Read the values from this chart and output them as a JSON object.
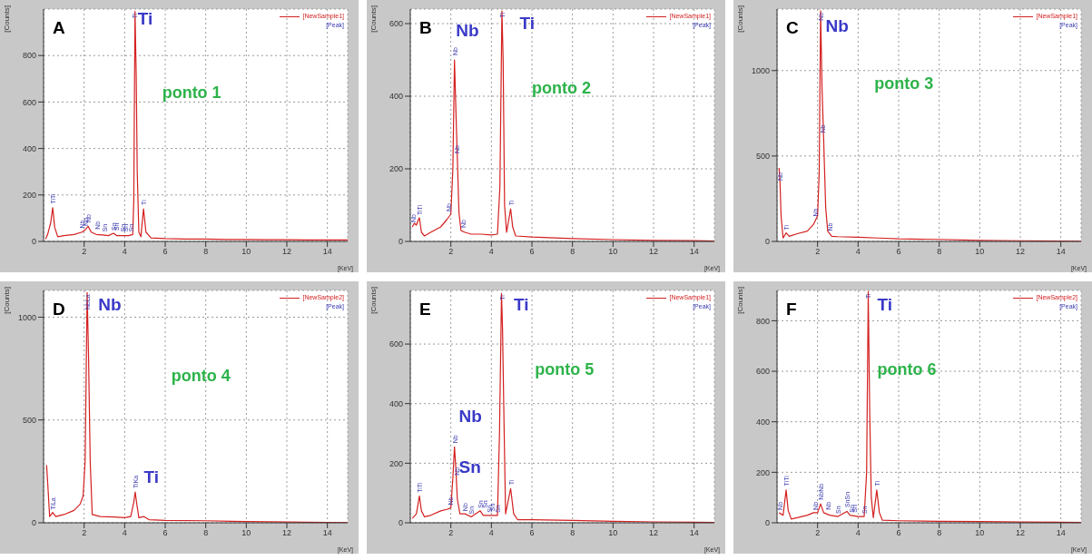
{
  "chart_data": [
    {
      "type": "line",
      "xlabel": "[KeV]",
      "ylabel": "[Counts]",
      "xlim": [
        0,
        15
      ],
      "xticks": [
        2,
        4,
        6,
        8,
        10,
        12,
        14
      ],
      "ylim": [
        0,
        1000
      ],
      "yticks": [
        0,
        200,
        400,
        600,
        800
      ],
      "grid": true,
      "legend": "top right",
      "marker": "none",
      "line_style": "solid",
      "x": [
        0.1,
        0.2,
        0.35,
        0.45,
        0.55,
        0.7,
        1.0,
        1.5,
        1.9,
        2.05,
        2.2,
        2.35,
        2.6,
        2.9,
        3.2,
        3.45,
        3.6,
        3.9,
        4.2,
        4.4,
        4.45,
        4.51,
        4.57,
        4.62,
        4.7,
        4.8,
        4.93,
        5.05,
        5.3,
        6,
        7,
        8,
        9,
        10,
        11,
        12,
        13,
        14,
        15
      ],
      "series": [
        {
          "name": "[NewSample1]",
          "color": "#d42020",
          "values": [
            10,
            30,
            80,
            145,
            60,
            20,
            25,
            30,
            40,
            50,
            65,
            40,
            30,
            28,
            25,
            35,
            25,
            25,
            25,
            30,
            180,
            990,
            720,
            300,
            40,
            20,
            140,
            40,
            15,
            12,
            10,
            10,
            8,
            8,
            7,
            7,
            6,
            6,
            6
          ]
        }
      ],
      "annotations": [
        "A",
        "ponto 1",
        "[Peak]",
        "Ti",
        {
          "text": "TiTi",
          "x": 0.45,
          "y": 150
        },
        {
          "text": "Nb",
          "x": 1.9,
          "y": 45
        },
        {
          "text": "Nb",
          "x": 2.05,
          "y": 55
        },
        {
          "text": "Nb",
          "x": 2.2,
          "y": 70
        },
        {
          "text": "Nb",
          "x": 2.65,
          "y": 40
        },
        {
          "text": "Sn",
          "x": 3.0,
          "y": 30
        },
        {
          "text": "Sn",
          "x": 3.45,
          "y": 35
        },
        {
          "text": "Sn",
          "x": 3.6,
          "y": 35
        },
        {
          "text": "Sn",
          "x": 3.9,
          "y": 30
        },
        {
          "text": "Sn",
          "x": 4.05,
          "y": 30
        },
        {
          "text": "Sn",
          "x": 4.3,
          "y": 30
        },
        {
          "text": "Ti",
          "x": 4.5,
          "y": 990
        },
        {
          "text": "Ti",
          "x": 4.93,
          "y": 145
        }
      ]
    },
    {
      "type": "line",
      "xlabel": "[KeV]",
      "ylabel": "[Counts]",
      "xlim": [
        0,
        15
      ],
      "xticks": [
        2,
        4,
        6,
        8,
        10,
        12,
        14
      ],
      "ylim": [
        0,
        640
      ],
      "yticks": [
        0,
        200,
        400,
        600
      ],
      "grid": true,
      "legend": "top right",
      "marker": "none",
      "line_style": "solid",
      "x": [
        0.1,
        0.2,
        0.3,
        0.4,
        0.45,
        0.55,
        0.7,
        1,
        1.5,
        1.8,
        2.0,
        2.1,
        2.18,
        2.25,
        2.32,
        2.4,
        2.5,
        2.7,
        3,
        3.5,
        4,
        4.3,
        4.42,
        4.52,
        4.58,
        4.65,
        4.75,
        4.95,
        5.05,
        5.2,
        6,
        8,
        10,
        12,
        14,
        15
      ],
      "series": [
        {
          "name": "[NewSample1]",
          "color": "#d42020",
          "values": [
            40,
            50,
            45,
            60,
            65,
            25,
            15,
            25,
            40,
            60,
            75,
            200,
            500,
            360,
            230,
            80,
            30,
            25,
            20,
            20,
            18,
            20,
            150,
            635,
            500,
            100,
            25,
            90,
            40,
            15,
            12,
            8,
            5,
            3,
            2,
            1
          ]
        }
      ],
      "annotations": [
        "B",
        "ponto 2",
        "[Peak]",
        "Nb",
        "Ti",
        {
          "text": "Nb",
          "x": 0.15,
          "y": 45
        },
        {
          "text": "TiTi",
          "x": 0.45,
          "y": 65
        },
        {
          "text": "Nb",
          "x": 1.9,
          "y": 75
        },
        {
          "text": "Nb",
          "x": 2.18,
          "y": 505
        },
        {
          "text": "Nb",
          "x": 2.3,
          "y": 235
        },
        {
          "text": "Nb",
          "x": 2.6,
          "y": 30
        },
        {
          "text": "Ti",
          "x": 4.52,
          "y": 635
        },
        {
          "text": "Ti",
          "x": 4.95,
          "y": 92
        }
      ]
    },
    {
      "type": "line",
      "xlabel": "[KeV]",
      "ylabel": "[Counts]",
      "xlim": [
        0,
        15
      ],
      "xticks": [
        2,
        4,
        6,
        8,
        10,
        12,
        14
      ],
      "ylim": [
        0,
        1360
      ],
      "yticks": [
        0,
        500,
        1000
      ],
      "grid": true,
      "legend": "top right",
      "marker": "none",
      "line_style": "solid",
      "x": [
        0.1,
        0.15,
        0.2,
        0.3,
        0.45,
        0.6,
        1,
        1.5,
        1.8,
        2.0,
        2.08,
        2.15,
        2.22,
        2.3,
        2.4,
        2.5,
        2.7,
        3,
        4,
        5,
        6,
        8,
        10,
        12,
        14,
        15
      ],
      "series": [
        {
          "name": "[NewSample1]",
          "color": "#d42020",
          "values": [
            430,
            340,
            150,
            20,
            50,
            30,
            45,
            60,
            100,
            150,
            400,
            1350,
            900,
            600,
            200,
            60,
            30,
            28,
            25,
            20,
            15,
            12,
            6,
            4,
            2,
            1
          ]
        }
      ],
      "annotations": [
        "C",
        "ponto 3",
        "[Peak]",
        "Nb",
        {
          "text": "Nb",
          "x": 0.15,
          "y": 340
        },
        {
          "text": "Ti",
          "x": 0.45,
          "y": 50
        },
        {
          "text": "Nb",
          "x": 1.9,
          "y": 130
        },
        {
          "text": "Nb",
          "x": 2.15,
          "y": 1350
        },
        {
          "text": "Nb",
          "x": 2.25,
          "y": 620
        },
        {
          "text": "Nb",
          "x": 2.6,
          "y": 45
        }
      ]
    },
    {
      "type": "line",
      "xlabel": "[KeV]",
      "ylabel": "[Counts]",
      "xlim": [
        0,
        15
      ],
      "xticks": [
        2,
        4,
        6,
        8,
        10,
        12,
        14
      ],
      "ylim": [
        0,
        1130
      ],
      "yticks": [
        0,
        500,
        1000
      ],
      "grid": true,
      "legend": "top right",
      "marker": "none",
      "line_style": "solid",
      "x": [
        0.15,
        0.2,
        0.3,
        0.45,
        0.6,
        1,
        1.5,
        1.8,
        1.95,
        2.05,
        2.15,
        2.22,
        2.3,
        2.4,
        2.8,
        3.5,
        4,
        4.3,
        4.45,
        4.52,
        4.6,
        4.7,
        4.95,
        5.2,
        6,
        8,
        10,
        12,
        14,
        15
      ],
      "series": [
        {
          "name": "[NewSample2]",
          "color": "#d42020",
          "values": [
            280,
            200,
            30,
            50,
            30,
            40,
            60,
            90,
            130,
            300,
            1120,
            800,
            300,
            40,
            30,
            28,
            25,
            30,
            100,
            150,
            90,
            25,
            30,
            15,
            12,
            10,
            6,
            4,
            2,
            1
          ]
        }
      ],
      "annotations": [
        "D",
        "ponto 4",
        "[Peak]",
        "Nb",
        "Ti",
        {
          "text": "TiLa",
          "x": 0.45,
          "y": 50
        },
        {
          "text": "NbLa",
          "x": 2.15,
          "y": 1120
        },
        {
          "text": "TiKa",
          "x": 4.52,
          "y": 155
        }
      ]
    },
    {
      "type": "line",
      "xlabel": "[KeV]",
      "ylabel": "[Counts]",
      "xlim": [
        0,
        15
      ],
      "xticks": [
        2,
        4,
        6,
        8,
        10,
        12,
        14
      ],
      "ylim": [
        0,
        780
      ],
      "yticks": [
        0,
        200,
        400,
        600
      ],
      "grid": true,
      "legend": "top right",
      "marker": "none",
      "line_style": "solid",
      "x": [
        0.1,
        0.3,
        0.45,
        0.55,
        0.7,
        1,
        1.5,
        1.8,
        2.0,
        2.1,
        2.18,
        2.25,
        2.32,
        2.45,
        2.7,
        3,
        3.45,
        3.6,
        4,
        4.3,
        4.4,
        4.5,
        4.55,
        4.62,
        4.7,
        4.95,
        5.1,
        5.3,
        6,
        8,
        10,
        12,
        14,
        15
      ],
      "series": [
        {
          "name": "[NewSample1]",
          "color": "#d42020",
          "values": [
            15,
            30,
            90,
            40,
            20,
            25,
            40,
            45,
            50,
            150,
            255,
            180,
            80,
            30,
            30,
            20,
            40,
            25,
            25,
            25,
            300,
            770,
            650,
            350,
            30,
            115,
            30,
            10,
            10,
            8,
            5,
            3,
            2,
            1
          ]
        }
      ],
      "annotations": [
        "E",
        "ponto 5",
        "[Peak]",
        "Ti",
        "Nb",
        "Sn",
        {
          "text": "TiTi",
          "x": 0.45,
          "y": 92
        },
        {
          "text": "Nb",
          "x": 1.95,
          "y": 50
        },
        {
          "text": "Nb",
          "x": 2.18,
          "y": 258
        },
        {
          "text": "Nb",
          "x": 2.28,
          "y": 150
        },
        {
          "text": "Nb",
          "x": 2.7,
          "y": 30
        },
        {
          "text": "Sn",
          "x": 3.0,
          "y": 20
        },
        {
          "text": "Sn",
          "x": 3.45,
          "y": 40
        },
        {
          "text": "Sn",
          "x": 3.65,
          "y": 40
        },
        {
          "text": "Sn",
          "x": 3.9,
          "y": 25
        },
        {
          "text": "Sn",
          "x": 4.05,
          "y": 30
        },
        {
          "text": "Sn",
          "x": 4.3,
          "y": 25
        },
        {
          "text": "Ti",
          "x": 4.52,
          "y": 770
        },
        {
          "text": "Ti",
          "x": 4.95,
          "y": 118
        }
      ]
    },
    {
      "type": "line",
      "xlabel": "[KeV]",
      "ylabel": "[Counts]",
      "xlim": [
        0,
        15
      ],
      "xticks": [
        2,
        4,
        6,
        8,
        10,
        12,
        14
      ],
      "ylim": [
        0,
        920
      ],
      "yticks": [
        0,
        200,
        400,
        600,
        800
      ],
      "grid": true,
      "legend": "top right",
      "marker": "none",
      "line_style": "solid",
      "x": [
        0.1,
        0.3,
        0.45,
        0.55,
        0.7,
        1,
        1.5,
        1.8,
        2.0,
        2.15,
        2.3,
        2.6,
        3,
        3.45,
        3.6,
        4,
        4.3,
        4.42,
        4.5,
        4.57,
        4.65,
        4.75,
        4.92,
        5.05,
        5.2,
        6,
        8,
        10,
        12,
        14,
        15
      ],
      "series": [
        {
          "name": "[NewSample2]",
          "color": "#d42020",
          "values": [
            40,
            30,
            130,
            50,
            15,
            20,
            30,
            40,
            40,
            75,
            40,
            30,
            25,
            45,
            30,
            25,
            25,
            200,
            915,
            450,
            100,
            20,
            130,
            40,
            10,
            8,
            6,
            5,
            3,
            2,
            1
          ]
        }
      ],
      "annotations": [
        "F",
        "ponto 6",
        "[Peak]",
        "Ti",
        {
          "text": "Nb",
          "x": 0.12,
          "y": 40
        },
        {
          "text": "TiTi",
          "x": 0.45,
          "y": 135
        },
        {
          "text": "Nb",
          "x": 1.9,
          "y": 40
        },
        {
          "text": "NbNb",
          "x": 2.15,
          "y": 80
        },
        {
          "text": "Nb",
          "x": 2.5,
          "y": 40
        },
        {
          "text": "Sn",
          "x": 3.0,
          "y": 25
        },
        {
          "text": "SnSn",
          "x": 3.45,
          "y": 50
        },
        {
          "text": "Sn",
          "x": 3.65,
          "y": 30
        },
        {
          "text": "Sn",
          "x": 3.8,
          "y": 30
        },
        {
          "text": "Sn",
          "x": 4.3,
          "y": 25
        },
        {
          "text": "Ti",
          "x": 4.5,
          "y": 915
        },
        {
          "text": "Ti",
          "x": 4.92,
          "y": 135
        }
      ]
    }
  ]
}
